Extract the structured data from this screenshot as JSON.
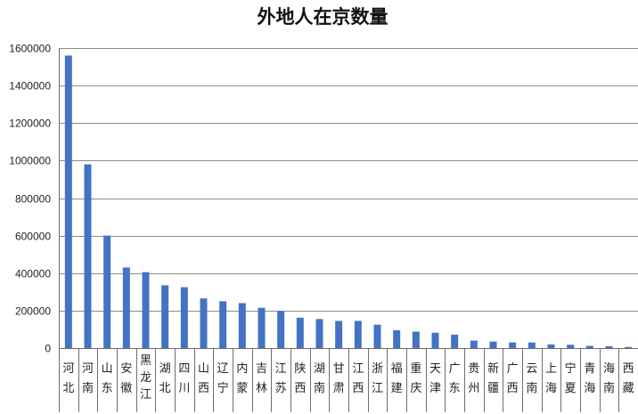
{
  "chart_data": {
    "type": "bar",
    "title": "外地人在京数量",
    "xlabel": "",
    "ylabel": "",
    "ylim": [
      0,
      1600000
    ],
    "yticks": [
      0,
      200000,
      400000,
      600000,
      800000,
      1000000,
      1200000,
      1400000,
      1600000
    ],
    "grid": true,
    "legend": "none",
    "bar_color": "#4472c4",
    "categories": [
      "河北",
      "河南",
      "山东",
      "安徽",
      "黑龙江",
      "湖北",
      "四川",
      "山西",
      "辽宁",
      "内蒙",
      "吉林",
      "江苏",
      "陕西",
      "湖南",
      "甘肃",
      "江西",
      "浙江",
      "福建",
      "重庆",
      "天津",
      "广东",
      "贵州",
      "新疆",
      "广西",
      "云南",
      "上海",
      "宁夏",
      "青海",
      "海南",
      "西藏"
    ],
    "values": [
      1560000,
      980000,
      600000,
      430000,
      405000,
      335000,
      325000,
      265000,
      250000,
      240000,
      215000,
      198000,
      162000,
      155000,
      145000,
      145000,
      125000,
      95000,
      88000,
      82000,
      72000,
      40000,
      35000,
      30000,
      30000,
      20000,
      18000,
      12000,
      10000,
      6000
    ]
  }
}
